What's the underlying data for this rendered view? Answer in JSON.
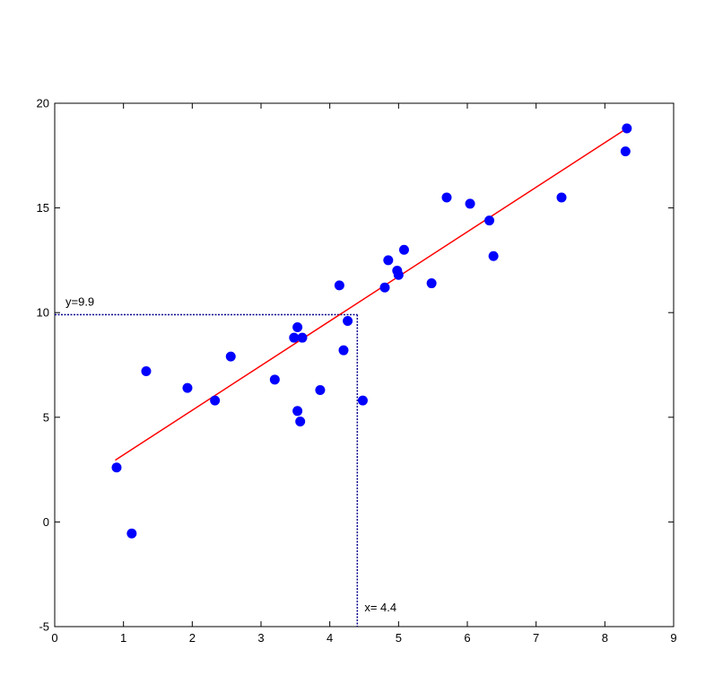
{
  "chart_data": {
    "type": "scatter",
    "xlim": [
      0,
      9
    ],
    "ylim": [
      -5,
      20
    ],
    "xticks": [
      0,
      1,
      2,
      3,
      4,
      5,
      6,
      7,
      8,
      9
    ],
    "yticks": [
      -5,
      0,
      5,
      10,
      15,
      20
    ],
    "grid": false,
    "points": {
      "color": "#0000ff",
      "x": [
        0.9,
        1.12,
        1.33,
        1.93,
        2.33,
        2.56,
        3.2,
        3.48,
        3.53,
        3.53,
        3.57,
        3.6,
        3.86,
        4.14,
        4.2,
        4.26,
        4.48,
        4.8,
        4.85,
        4.98,
        5.0,
        5.08,
        5.48,
        5.7,
        6.04,
        6.32,
        6.38,
        7.37,
        8.3,
        8.32
      ],
      "y": [
        2.6,
        -0.55,
        7.2,
        6.4,
        5.8,
        7.9,
        6.8,
        8.8,
        9.3,
        5.3,
        4.8,
        8.8,
        6.3,
        11.3,
        8.2,
        9.6,
        5.8,
        11.2,
        12.5,
        12.0,
        11.8,
        13.0,
        11.4,
        15.5,
        15.2,
        14.4,
        12.7,
        15.5,
        17.7,
        18.8
      ]
    },
    "fit_line": {
      "color": "#ff0000",
      "x": [
        0.88,
        8.32
      ],
      "y": [
        2.95,
        18.8
      ]
    },
    "guide": {
      "color": "#00008b",
      "x": 4.4,
      "y": 9.9
    },
    "annotations": {
      "y_label": "y=9.9",
      "x_label": "x= 4.4"
    }
  }
}
